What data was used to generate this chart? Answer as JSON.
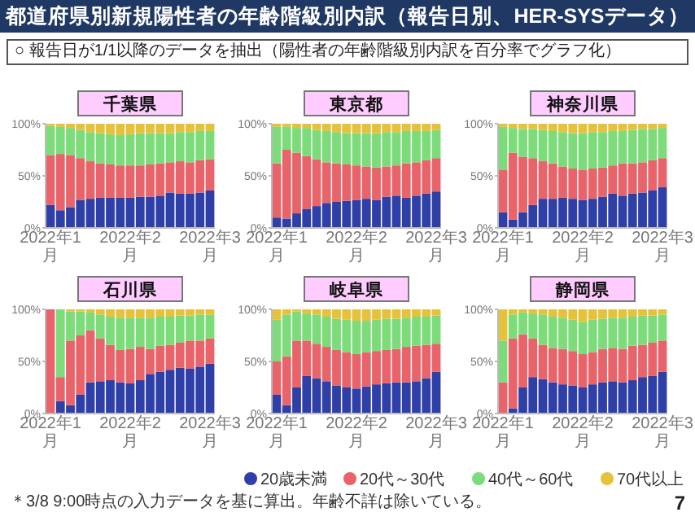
{
  "chart_data": [
    {
      "type": "other",
      "title": "都道府県別新規陽性者の年齢階級別内訳（報告日別、HER-SYSデータ）",
      "subtitle": "○ 報告日が1/1以降のデータを抽出（陽性者の年齢階級別内訳を百分率でグラフ化）",
      "annotations": [
        "＊3/8 9:00時点の入力データを基に算出。年齢不詳は除いている。",
        "7"
      ]
    },
    {
      "type": "bar",
      "stacked": true,
      "title": "千葉県",
      "categories": [
        "2022年1月",
        null,
        null,
        null,
        null,
        null,
        null,
        null,
        "2022年2月",
        null,
        null,
        null,
        null,
        null,
        null,
        null,
        "2022年3月"
      ],
      "ylim": [
        0,
        100
      ],
      "yticks": [
        {
          "value": 0,
          "label": "0%"
        },
        {
          "value": 50,
          "label": "50%"
        },
        {
          "value": 100,
          "label": "100%"
        }
      ],
      "series": [
        {
          "color": "#2f3fa8",
          "values": [
            22,
            17,
            20,
            27,
            28,
            29,
            29,
            29,
            29,
            30,
            30,
            31,
            34,
            33,
            33,
            34,
            36
          ]
        },
        {
          "color": "#e8646a",
          "values": [
            48,
            54,
            50,
            40,
            36,
            33,
            32,
            31,
            31,
            30,
            31,
            31,
            29,
            31,
            30,
            31,
            30
          ]
        },
        {
          "color": "#7ddc7a",
          "values": [
            28,
            26,
            26,
            27,
            28,
            29,
            29,
            29,
            30,
            31,
            30,
            29,
            28,
            28,
            29,
            28,
            27
          ]
        },
        {
          "color": "#e6c23a",
          "values": [
            2,
            3,
            4,
            6,
            8,
            9,
            10,
            11,
            10,
            9,
            9,
            9,
            9,
            8,
            8,
            7,
            7
          ]
        }
      ]
    },
    {
      "type": "bar",
      "stacked": true,
      "title": "東京都",
      "categories": [
        "2022年1月",
        null,
        null,
        null,
        null,
        null,
        null,
        null,
        "2022年2月",
        null,
        null,
        null,
        null,
        null,
        null,
        null,
        "2022年3月"
      ],
      "ylim": [
        0,
        100
      ],
      "yticks": [
        {
          "value": 0,
          "label": "0%"
        },
        {
          "value": 50,
          "label": "50%"
        },
        {
          "value": 100,
          "label": "100%"
        }
      ],
      "series": [
        {
          "color": "#2f3fa8",
          "values": [
            10,
            9,
            14,
            18,
            21,
            24,
            25,
            26,
            27,
            28,
            27,
            30,
            31,
            29,
            31,
            33,
            35
          ]
        },
        {
          "color": "#e8646a",
          "values": [
            52,
            66,
            58,
            51,
            45,
            39,
            37,
            35,
            33,
            31,
            31,
            29,
            29,
            33,
            32,
            32,
            32
          ]
        },
        {
          "color": "#7ddc7a",
          "values": [
            35,
            22,
            24,
            27,
            28,
            30,
            30,
            30,
            31,
            32,
            33,
            33,
            32,
            31,
            30,
            28,
            27
          ]
        },
        {
          "color": "#e6c23a",
          "values": [
            3,
            3,
            4,
            4,
            6,
            7,
            8,
            9,
            9,
            9,
            9,
            8,
            8,
            7,
            7,
            7,
            6
          ]
        }
      ]
    },
    {
      "type": "bar",
      "stacked": true,
      "title": "神奈川県",
      "categories": [
        "2022年1月",
        null,
        null,
        null,
        null,
        null,
        null,
        null,
        "2022年2月",
        null,
        null,
        null,
        null,
        null,
        null,
        null,
        "2022年3月"
      ],
      "ylim": [
        0,
        100
      ],
      "yticks": [
        {
          "value": 0,
          "label": "0%"
        },
        {
          "value": 50,
          "label": "50%"
        },
        {
          "value": 100,
          "label": "100%"
        }
      ],
      "series": [
        {
          "color": "#2f3fa8",
          "values": [
            15,
            8,
            15,
            22,
            28,
            28,
            29,
            28,
            27,
            28,
            30,
            33,
            31,
            33,
            34,
            36,
            39
          ]
        },
        {
          "color": "#e8646a",
          "values": [
            41,
            64,
            53,
            45,
            36,
            34,
            30,
            29,
            29,
            29,
            28,
            27,
            31,
            29,
            29,
            29,
            28
          ]
        },
        {
          "color": "#7ddc7a",
          "values": [
            41,
            24,
            27,
            28,
            30,
            31,
            33,
            34,
            35,
            35,
            34,
            33,
            31,
            32,
            32,
            30,
            29
          ]
        },
        {
          "color": "#e6c23a",
          "values": [
            3,
            4,
            5,
            5,
            6,
            7,
            8,
            9,
            9,
            8,
            8,
            7,
            7,
            6,
            5,
            5,
            4
          ]
        }
      ]
    },
    {
      "type": "bar",
      "stacked": true,
      "title": "石川県",
      "categories": [
        "2022年1月",
        null,
        null,
        null,
        null,
        null,
        null,
        null,
        "2022年2月",
        null,
        null,
        null,
        null,
        null,
        null,
        null,
        "2022年3月"
      ],
      "ylim": [
        0,
        100
      ],
      "yticks": [
        {
          "value": 0,
          "label": "0%"
        },
        {
          "value": 50,
          "label": "50%"
        },
        {
          "value": 100,
          "label": "100%"
        }
      ],
      "series": [
        {
          "color": "#2f3fa8",
          "values": [
            0,
            12,
            8,
            18,
            30,
            31,
            32,
            30,
            29,
            32,
            38,
            40,
            42,
            44,
            43,
            45,
            48
          ]
        },
        {
          "color": "#e8646a",
          "values": [
            100,
            23,
            62,
            57,
            50,
            41,
            34,
            31,
            33,
            32,
            24,
            25,
            24,
            24,
            27,
            25,
            24
          ]
        },
        {
          "color": "#7ddc7a",
          "values": [
            0,
            65,
            28,
            23,
            17,
            23,
            27,
            31,
            30,
            28,
            30,
            28,
            27,
            26,
            24,
            25,
            23
          ]
        },
        {
          "color": "#e6c23a",
          "values": [
            0,
            0,
            2,
            2,
            3,
            5,
            7,
            8,
            8,
            8,
            8,
            7,
            7,
            6,
            6,
            5,
            5
          ]
        }
      ]
    },
    {
      "type": "bar",
      "stacked": true,
      "title": "岐阜県",
      "categories": [
        "2022年1月",
        null,
        null,
        null,
        null,
        null,
        null,
        null,
        "2022年2月",
        null,
        null,
        null,
        null,
        null,
        null,
        null,
        "2022年3月"
      ],
      "ylim": [
        0,
        100
      ],
      "yticks": [
        {
          "value": 0,
          "label": "0%"
        },
        {
          "value": 50,
          "label": "50%"
        },
        {
          "value": 100,
          "label": "100%"
        }
      ],
      "series": [
        {
          "color": "#2f3fa8",
          "values": [
            18,
            8,
            25,
            36,
            34,
            31,
            27,
            25,
            24,
            26,
            28,
            29,
            30,
            30,
            31,
            34,
            40
          ]
        },
        {
          "color": "#e8646a",
          "values": [
            32,
            47,
            45,
            34,
            33,
            33,
            34,
            34,
            33,
            33,
            32,
            32,
            32,
            34,
            34,
            32,
            27
          ]
        },
        {
          "color": "#7ddc7a",
          "values": [
            40,
            40,
            28,
            26,
            28,
            29,
            30,
            31,
            32,
            30,
            30,
            30,
            29,
            28,
            28,
            27,
            27
          ]
        },
        {
          "color": "#e6c23a",
          "values": [
            10,
            5,
            2,
            4,
            5,
            7,
            9,
            10,
            11,
            11,
            10,
            9,
            9,
            8,
            7,
            7,
            6
          ]
        }
      ]
    },
    {
      "type": "bar",
      "stacked": true,
      "title": "静岡県",
      "legend": "bottom",
      "categories": [
        "2022年1月",
        null,
        null,
        null,
        null,
        null,
        null,
        null,
        "2022年2月",
        null,
        null,
        null,
        null,
        null,
        null,
        null,
        "2022年3月"
      ],
      "ylim": [
        0,
        100
      ],
      "yticks": [
        {
          "value": 0,
          "label": "0%"
        },
        {
          "value": 50,
          "label": "50%"
        },
        {
          "value": 100,
          "label": "100%"
        }
      ],
      "series": [
        {
          "name": "20歳未満",
          "color": "#2f3fa8",
          "values": [
            0,
            5,
            25,
            35,
            33,
            30,
            28,
            27,
            25,
            28,
            30,
            31,
            30,
            32,
            35,
            36,
            40
          ]
        },
        {
          "name": "20代～30代",
          "color": "#e8646a",
          "values": [
            30,
            67,
            51,
            37,
            33,
            33,
            34,
            33,
            32,
            31,
            32,
            32,
            32,
            33,
            31,
            32,
            30
          ]
        },
        {
          "name": "40代～60代",
          "color": "#7ddc7a",
          "values": [
            40,
            23,
            21,
            24,
            29,
            30,
            30,
            30,
            31,
            31,
            29,
            29,
            30,
            28,
            28,
            26,
            25
          ]
        },
        {
          "name": "70代以上",
          "color": "#e6c23a",
          "values": [
            30,
            5,
            3,
            4,
            5,
            7,
            8,
            10,
            12,
            10,
            9,
            8,
            8,
            7,
            6,
            6,
            5
          ]
        }
      ]
    }
  ]
}
